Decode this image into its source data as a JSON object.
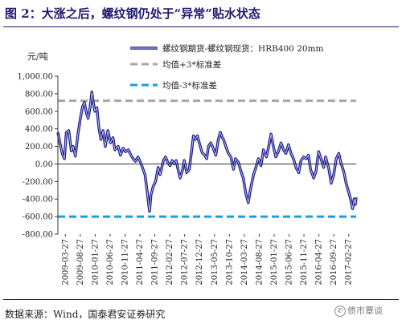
{
  "header": {
    "title": "图 2：大涨之后，螺纹钢仍处于“异常”贴水状态"
  },
  "footer": {
    "source": "数据来源：Wind，国泰君安证券研究",
    "watermark": "债市覃谈"
  },
  "colors": {
    "series": "#1c1d8c",
    "mean_plus": "#a6a6a6",
    "mean_minus": "#1e9be0"
  },
  "chart_data": {
    "type": "line",
    "ylabel": "元/吨",
    "ylim": [
      -800,
      1000
    ],
    "yticks": [
      1000,
      800,
      600,
      400,
      200,
      0,
      -200,
      -400,
      -600,
      -800
    ],
    "ytick_labels": [
      "1,000.00",
      "800.00",
      "600.00",
      "400.00",
      "200.00",
      "0.00",
      "-200.00",
      "-400.00",
      "-600.00",
      "-800.00"
    ],
    "xlim": [
      "2009-03-27",
      "2017-06-30"
    ],
    "xtick_labels": [
      "2009-03-27",
      "2009-08-27",
      "2010-01-27",
      "2010-06-27",
      "2010-11-27",
      "2011-04-27",
      "2011-09-27",
      "2012-02-27",
      "2012-07-27",
      "2012-12-27",
      "2013-05-27",
      "2013-10-27",
      "2014-03-27",
      "2014-08-27",
      "2015-01-27",
      "2015-06-27",
      "2015-11-27",
      "2016-04-27",
      "2016-09-27",
      "2017-02-27"
    ],
    "legend": [
      "螺纹钢期货-螺纹钢现货：HRB400 20mm",
      "均值+3*标准差",
      "均值-3*标准差"
    ],
    "legend_position": "top-right",
    "mean_plus_3sd": 720,
    "mean_minus_3sd": -600,
    "series": [
      {
        "name": "螺纹钢期货-螺纹钢现货：HRB400 20mm",
        "points": [
          [
            "2009-03-27",
            360
          ],
          [
            "2009-04-15",
            250
          ],
          [
            "2009-05-10",
            120
          ],
          [
            "2009-06-01",
            60
          ],
          [
            "2009-06-20",
            360
          ],
          [
            "2009-07-15",
            380
          ],
          [
            "2009-08-10",
            150
          ],
          [
            "2009-08-27",
            200
          ],
          [
            "2009-09-20",
            90
          ],
          [
            "2009-10-15",
            330
          ],
          [
            "2009-11-10",
            520
          ],
          [
            "2009-12-01",
            650
          ],
          [
            "2009-12-20",
            700
          ],
          [
            "2010-01-10",
            580
          ],
          [
            "2010-01-27",
            520
          ],
          [
            "2010-02-15",
            640
          ],
          [
            "2010-03-05",
            820
          ],
          [
            "2010-03-20",
            700
          ],
          [
            "2010-04-05",
            600
          ],
          [
            "2010-04-25",
            640
          ],
          [
            "2010-05-15",
            420
          ],
          [
            "2010-06-05",
            280
          ],
          [
            "2010-06-27",
            380
          ],
          [
            "2010-07-20",
            200
          ],
          [
            "2010-08-15",
            380
          ],
          [
            "2010-09-10",
            240
          ],
          [
            "2010-10-05",
            300
          ],
          [
            "2010-10-25",
            160
          ],
          [
            "2010-11-27",
            200
          ],
          [
            "2010-12-20",
            100
          ],
          [
            "2011-01-15",
            180
          ],
          [
            "2011-02-10",
            140
          ],
          [
            "2011-03-10",
            160
          ],
          [
            "2011-04-05",
            100
          ],
          [
            "2011-04-27",
            60
          ],
          [
            "2011-05-20",
            30
          ],
          [
            "2011-06-15",
            80
          ],
          [
            "2011-07-10",
            20
          ],
          [
            "2011-08-05",
            -60
          ],
          [
            "2011-08-25",
            -120
          ],
          [
            "2011-09-15",
            -300
          ],
          [
            "2011-09-27",
            -420
          ],
          [
            "2011-10-10",
            -540
          ],
          [
            "2011-10-25",
            -350
          ],
          [
            "2011-11-15",
            -260
          ],
          [
            "2011-12-10",
            -200
          ],
          [
            "2012-01-05",
            -40
          ],
          [
            "2012-01-25",
            -120
          ],
          [
            "2012-02-27",
            40
          ],
          [
            "2012-03-20",
            80
          ],
          [
            "2012-04-10",
            20
          ],
          [
            "2012-05-05",
            -20
          ],
          [
            "2012-05-25",
            40
          ],
          [
            "2012-06-15",
            0
          ],
          [
            "2012-07-05",
            40
          ],
          [
            "2012-07-27",
            -80
          ],
          [
            "2012-08-15",
            -160
          ],
          [
            "2012-09-05",
            -80
          ],
          [
            "2012-09-25",
            40
          ],
          [
            "2012-10-20",
            -100
          ],
          [
            "2012-11-15",
            -60
          ],
          [
            "2012-12-10",
            160
          ],
          [
            "2012-12-27",
            320
          ],
          [
            "2013-01-15",
            280
          ],
          [
            "2013-02-05",
            320
          ],
          [
            "2013-03-01",
            220
          ],
          [
            "2013-03-25",
            130
          ],
          [
            "2013-04-20",
            100
          ],
          [
            "2013-05-10",
            60
          ],
          [
            "2013-05-27",
            200
          ],
          [
            "2013-06-20",
            240
          ],
          [
            "2013-07-15",
            180
          ],
          [
            "2013-08-10",
            100
          ],
          [
            "2013-09-05",
            280
          ],
          [
            "2013-09-25",
            360
          ],
          [
            "2013-10-15",
            300
          ],
          [
            "2013-10-27",
            280
          ],
          [
            "2013-11-20",
            200
          ],
          [
            "2013-12-15",
            120
          ],
          [
            "2014-01-10",
            80
          ],
          [
            "2014-02-05",
            -60
          ],
          [
            "2014-02-25",
            60
          ],
          [
            "2014-03-27",
            20
          ],
          [
            "2014-04-20",
            -80
          ],
          [
            "2014-05-15",
            -160
          ],
          [
            "2014-06-10",
            -340
          ],
          [
            "2014-07-05",
            -440
          ],
          [
            "2014-07-25",
            -300
          ],
          [
            "2014-08-27",
            -120
          ],
          [
            "2014-09-20",
            -40
          ],
          [
            "2014-10-15",
            60
          ],
          [
            "2014-11-10",
            -20
          ],
          [
            "2014-12-05",
            160
          ],
          [
            "2015-01-05",
            80
          ],
          [
            "2015-01-27",
            200
          ],
          [
            "2015-02-20",
            340
          ],
          [
            "2015-03-15",
            200
          ],
          [
            "2015-04-10",
            80
          ],
          [
            "2015-05-05",
            140
          ],
          [
            "2015-06-01",
            240
          ],
          [
            "2015-06-27",
            160
          ],
          [
            "2015-07-20",
            120
          ],
          [
            "2015-08-15",
            220
          ],
          [
            "2015-09-10",
            120
          ],
          [
            "2015-10-05",
            60
          ],
          [
            "2015-10-30",
            -40
          ],
          [
            "2015-11-27",
            -100
          ],
          [
            "2015-12-20",
            40
          ],
          [
            "2016-01-15",
            80
          ],
          [
            "2016-02-10",
            60
          ],
          [
            "2016-03-05",
            100
          ],
          [
            "2016-03-25",
            -60
          ],
          [
            "2016-04-27",
            -160
          ],
          [
            "2016-05-20",
            -80
          ],
          [
            "2016-06-15",
            140
          ],
          [
            "2016-07-10",
            60
          ],
          [
            "2016-08-05",
            -40
          ],
          [
            "2016-08-25",
            80
          ],
          [
            "2016-09-27",
            -60
          ],
          [
            "2016-10-20",
            -220
          ],
          [
            "2016-11-15",
            -120
          ],
          [
            "2016-12-10",
            60
          ],
          [
            "2017-01-05",
            120
          ],
          [
            "2017-01-25",
            20
          ],
          [
            "2017-02-27",
            -100
          ],
          [
            "2017-03-20",
            -220
          ],
          [
            "2017-04-10",
            -300
          ],
          [
            "2017-04-25",
            -360
          ],
          [
            "2017-05-10",
            -430
          ],
          [
            "2017-05-25",
            -510
          ],
          [
            "2017-06-10",
            -400
          ],
          [
            "2017-06-22",
            -460
          ],
          [
            "2017-06-30",
            -380
          ]
        ]
      }
    ]
  }
}
